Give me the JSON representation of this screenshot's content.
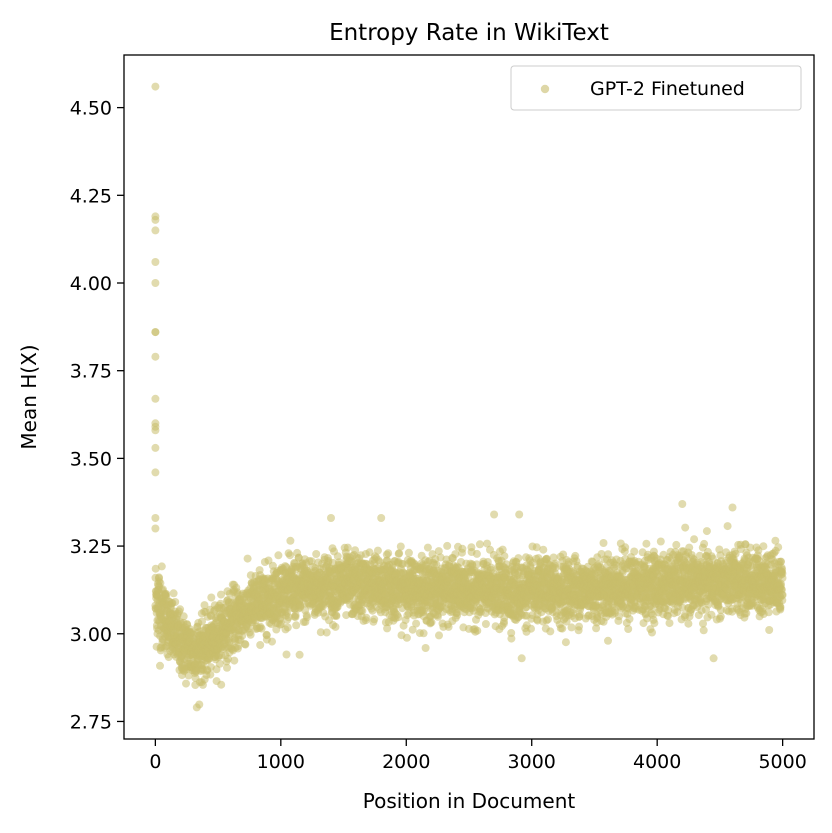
{
  "chart_data": {
    "type": "scatter",
    "title": "Entropy Rate in WikiText",
    "xlabel": "Position in Document",
    "ylabel": "Mean H(X)",
    "xlim": [
      -250,
      5250
    ],
    "ylim": [
      2.7,
      4.65
    ],
    "xticks": [
      0,
      1000,
      2000,
      3000,
      4000,
      5000
    ],
    "xtick_labels": [
      "0",
      "1000",
      "2000",
      "3000",
      "4000",
      "5000"
    ],
    "yticks": [
      2.75,
      3.0,
      3.25,
      3.5,
      3.75,
      4.0,
      4.25,
      4.5
    ],
    "ytick_labels": [
      "2.75",
      "3.00",
      "3.25",
      "3.50",
      "3.75",
      "4.00",
      "4.25",
      "4.50"
    ],
    "legend_position": "top-right",
    "grid": false,
    "series": [
      {
        "name": "GPT-2 Finetuned",
        "color": "#c8bd6c",
        "points_per_unit_position": 1,
        "x_range": [
          0,
          5000
        ],
        "trend": {
          "description": "Mean entropy per token position; sharp spike near position 0, dip to ~2.95 around position 300, recovery to ~3.10 by 1000, plateau ~3.12-3.15 afterward",
          "anchors": [
            [
              0,
              3.1
            ],
            [
              100,
              3.03
            ],
            [
              200,
              2.97
            ],
            [
              300,
              2.95
            ],
            [
              400,
              2.96
            ],
            [
              500,
              3.0
            ],
            [
              600,
              3.03
            ],
            [
              700,
              3.06
            ],
            [
              800,
              3.08
            ],
            [
              1000,
              3.12
            ],
            [
              1500,
              3.14
            ],
            [
              2000,
              3.13
            ],
            [
              3000,
              3.12
            ],
            [
              4000,
              3.14
            ],
            [
              5000,
              3.15
            ]
          ],
          "spread": 0.045
        },
        "outliers": [
          [
            0,
            4.56
          ],
          [
            0,
            4.19
          ],
          [
            0,
            4.18
          ],
          [
            0,
            4.15
          ],
          [
            0,
            4.06
          ],
          [
            0,
            4.0
          ],
          [
            0,
            3.86
          ],
          [
            0,
            3.86
          ],
          [
            0,
            3.79
          ],
          [
            0,
            3.67
          ],
          [
            0,
            3.6
          ],
          [
            0,
            3.59
          ],
          [
            0,
            3.58
          ],
          [
            0,
            3.53
          ],
          [
            0,
            3.46
          ],
          [
            0,
            3.33
          ],
          [
            0,
            3.3
          ],
          [
            1400,
            3.33
          ],
          [
            1800,
            3.33
          ],
          [
            2700,
            3.34
          ],
          [
            2900,
            3.34
          ],
          [
            4200,
            3.37
          ],
          [
            4600,
            3.36
          ],
          [
            4450,
            2.93
          ],
          [
            330,
            2.79
          ],
          [
            1150,
            2.94
          ],
          [
            2920,
            2.93
          ]
        ]
      }
    ]
  }
}
